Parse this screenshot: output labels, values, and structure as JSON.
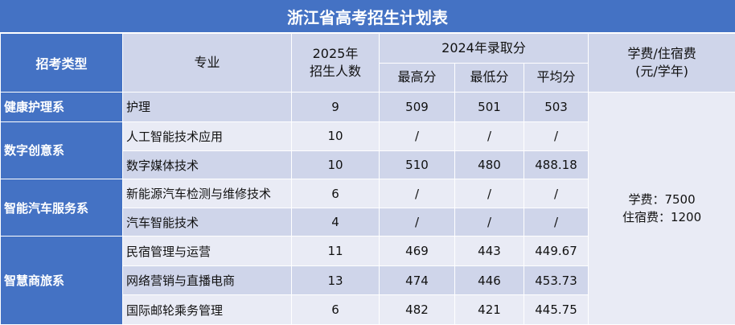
{
  "title": "浙江省高考招生计划表",
  "headers": {
    "category": "招考类型",
    "major": "专业",
    "plan_year": "2025年",
    "plan_count": "招生人数",
    "score_group": "2024年录取分",
    "max": "最高分",
    "min": "最低分",
    "avg": "平均分",
    "fee_line1": "学费/住宿费",
    "fee_line2": "(元/学年)"
  },
  "categories": [
    "健康护理系",
    "数字创意系",
    "智能汽车服务系",
    "智慧商旅系"
  ],
  "rows": [
    {
      "major": "护理",
      "count": "9",
      "max": "509",
      "min": "501",
      "avg": "503"
    },
    {
      "major": "人工智能技术应用",
      "count": "10",
      "max": "/",
      "min": "/",
      "avg": "/"
    },
    {
      "major": "数字媒体技术",
      "count": "10",
      "max": "510",
      "min": "480",
      "avg": "488.18"
    },
    {
      "major": "新能源汽车检测与维修技术",
      "count": "6",
      "max": "/",
      "min": "/",
      "avg": "/"
    },
    {
      "major": "汽车智能技术",
      "count": "4",
      "max": "/",
      "min": "/",
      "avg": "/"
    },
    {
      "major": "民宿管理与运营",
      "count": "11",
      "max": "469",
      "min": "443",
      "avg": "449.67"
    },
    {
      "major": "网络营销与直播电商",
      "count": "13",
      "max": "474",
      "min": "446",
      "avg": "453.73"
    },
    {
      "major": "国际邮轮乘务管理",
      "count": "6",
      "max": "482",
      "min": "421",
      "avg": "445.75"
    }
  ],
  "fees": {
    "tuition": "学费：7500",
    "lodging": "住宿费：1200"
  }
}
